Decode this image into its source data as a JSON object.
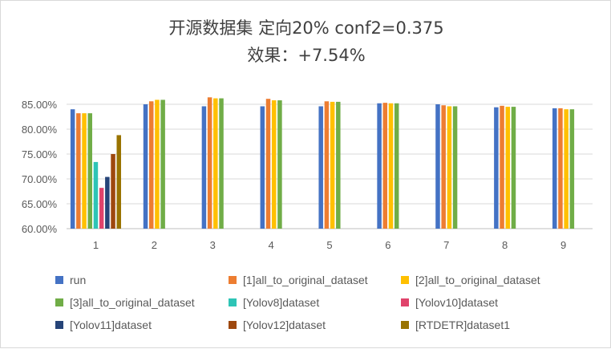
{
  "chart_data": {
    "type": "bar",
    "title_line1": "开源数据集 定向20% conf2=0.375",
    "title_line2": "效果：+7.54%",
    "categories": [
      "1",
      "2",
      "3",
      "4",
      "5",
      "6",
      "7",
      "8",
      "9"
    ],
    "ylim": [
      60,
      87.5
    ],
    "yticks": [
      "60.00%",
      "65.00%",
      "70.00%",
      "75.00%",
      "80.00%",
      "85.00%"
    ],
    "ytick_values": [
      60,
      65,
      70,
      75,
      80,
      85
    ],
    "grid": true,
    "legend_position": "bottom",
    "series": [
      {
        "name": "run",
        "color": "#4472C4",
        "values": [
          84.0,
          85.0,
          84.6,
          84.6,
          84.6,
          85.2,
          85.0,
          84.4,
          84.2
        ]
      },
      {
        "name": "[1]all_to_original_dataset",
        "color": "#ED7D31",
        "values": [
          83.2,
          85.6,
          86.4,
          86.1,
          85.6,
          85.3,
          84.8,
          84.7,
          84.2
        ]
      },
      {
        "name": "[2]all_to_original_dataset",
        "color": "#FFC000",
        "values": [
          83.2,
          85.9,
          86.2,
          85.8,
          85.5,
          85.2,
          84.6,
          84.5,
          84.0
        ]
      },
      {
        "name": "[3]all_to_original_dataset",
        "color": "#70AD47",
        "values": [
          83.2,
          85.9,
          86.2,
          85.8,
          85.5,
          85.2,
          84.6,
          84.5,
          84.0
        ]
      },
      {
        "name": "[Yolov8]dataset",
        "color": "#2EC4B6",
        "values": [
          73.4,
          null,
          null,
          null,
          null,
          null,
          null,
          null,
          null
        ]
      },
      {
        "name": "[Yolov10]dataset",
        "color": "#E0436B",
        "values": [
          68.2,
          null,
          null,
          null,
          null,
          null,
          null,
          null,
          null
        ]
      },
      {
        "name": "[Yolov11]dataset",
        "color": "#264478",
        "values": [
          70.4,
          null,
          null,
          null,
          null,
          null,
          null,
          null,
          null
        ]
      },
      {
        "name": "[Yolov12]dataset",
        "color": "#9E480E",
        "values": [
          75.0,
          null,
          null,
          null,
          null,
          null,
          null,
          null,
          null
        ]
      },
      {
        "name": "[RTDETR]dataset1",
        "color": "#997300",
        "values": [
          78.8,
          null,
          null,
          null,
          null,
          null,
          null,
          null,
          null
        ]
      }
    ]
  }
}
